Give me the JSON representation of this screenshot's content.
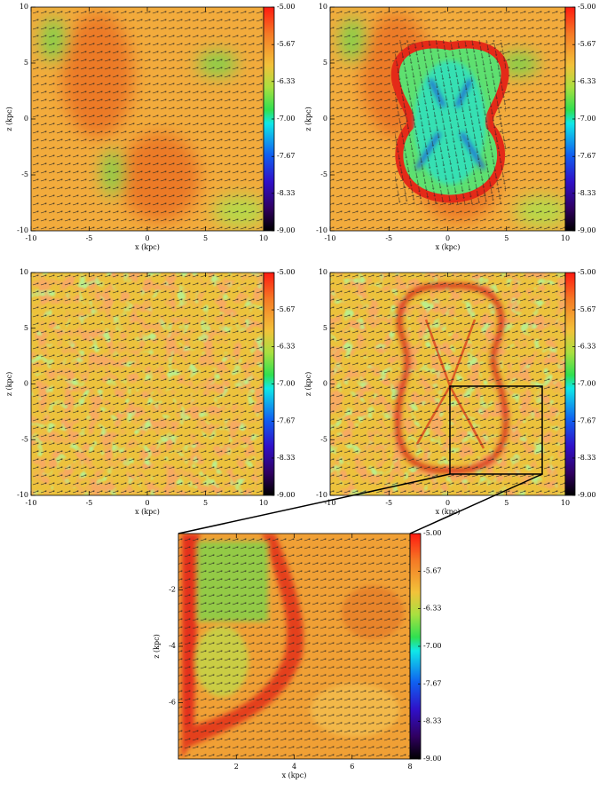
{
  "chart_data": [
    {
      "type": "heatmap",
      "xlabel": "x (kpc)",
      "ylabel": "z (kpc)",
      "xlim": [
        -10,
        10
      ],
      "ylim": [
        -10,
        10
      ],
      "xticks": [
        -10,
        -5,
        0,
        5,
        10
      ],
      "yticks": [
        -10,
        -5,
        0,
        5,
        10
      ],
      "clim": [
        -9,
        -5
      ],
      "cticks": [
        {
          "value": -5,
          "label": "-5.00"
        },
        -5.67,
        -6.33,
        {
          "value": -7,
          "label": "-7.00"
        },
        -7.67,
        -8.33,
        {
          "value": -9,
          "label": "-9.00"
        }
      ]
    },
    {
      "type": "heatmap",
      "xlabel": "x (kpc)",
      "ylabel": "z (kpc)",
      "xlim": [
        -10,
        10
      ],
      "ylim": [
        -10,
        10
      ],
      "xticks": [
        -10,
        -5,
        0,
        5,
        10
      ],
      "yticks": [
        -10,
        -5,
        0,
        5,
        10
      ],
      "clim": [
        -9,
        -5
      ],
      "cticks": [
        {
          "value": -5,
          "label": "-5.00"
        },
        -5.67,
        -6.33,
        {
          "value": -7,
          "label": "-7.00"
        },
        -7.67,
        -8.33,
        {
          "value": -9,
          "label": "-9.00"
        }
      ]
    },
    {
      "type": "heatmap",
      "xlabel": "x (kpc)",
      "ylabel": "z (kpc)",
      "xlim": [
        -10,
        10
      ],
      "ylim": [
        -10,
        10
      ],
      "xticks": [
        -10,
        -5,
        0,
        5,
        10
      ],
      "yticks": [
        -10,
        -5,
        0,
        5,
        10
      ],
      "clim": [
        -9,
        -5
      ],
      "cticks": [
        {
          "value": -5,
          "label": "-5.00"
        },
        -5.67,
        -6.33,
        {
          "value": -7,
          "label": "-7.00"
        },
        -7.67,
        -8.33,
        {
          "value": -9,
          "label": "-9.00"
        }
      ]
    },
    {
      "type": "heatmap",
      "xlabel": "x (kpc)",
      "ylabel": "z (kpc)",
      "xlim": [
        -10,
        10
      ],
      "ylim": [
        -10,
        10
      ],
      "xticks": [
        -10,
        -5,
        0,
        5,
        10
      ],
      "yticks": [
        -10,
        -5,
        0,
        5,
        10
      ],
      "clim": [
        -9,
        -5
      ],
      "cticks": [
        {
          "value": -5,
          "label": "-5.00"
        },
        -5.67,
        -6.33,
        {
          "value": -7,
          "label": "-7.00"
        },
        -7.67,
        -8.33,
        {
          "value": -9,
          "label": "-9.00"
        }
      ]
    },
    {
      "type": "heatmap",
      "xlabel": "x (kpc)",
      "ylabel": "z (kpc)",
      "xlim": [
        0,
        8
      ],
      "ylim": [
        -8,
        0
      ],
      "xticks": [
        2,
        4,
        6,
        8
      ],
      "yticks": [
        -2,
        -4,
        -6
      ],
      "clim": [
        -9,
        -5
      ],
      "cticks": [
        {
          "value": -5,
          "label": "-5.00"
        },
        -5.67,
        -6.33,
        {
          "value": -7,
          "label": "-7.00"
        },
        -7.67,
        -8.33,
        {
          "value": -9,
          "label": "-9.00"
        }
      ]
    }
  ]
}
